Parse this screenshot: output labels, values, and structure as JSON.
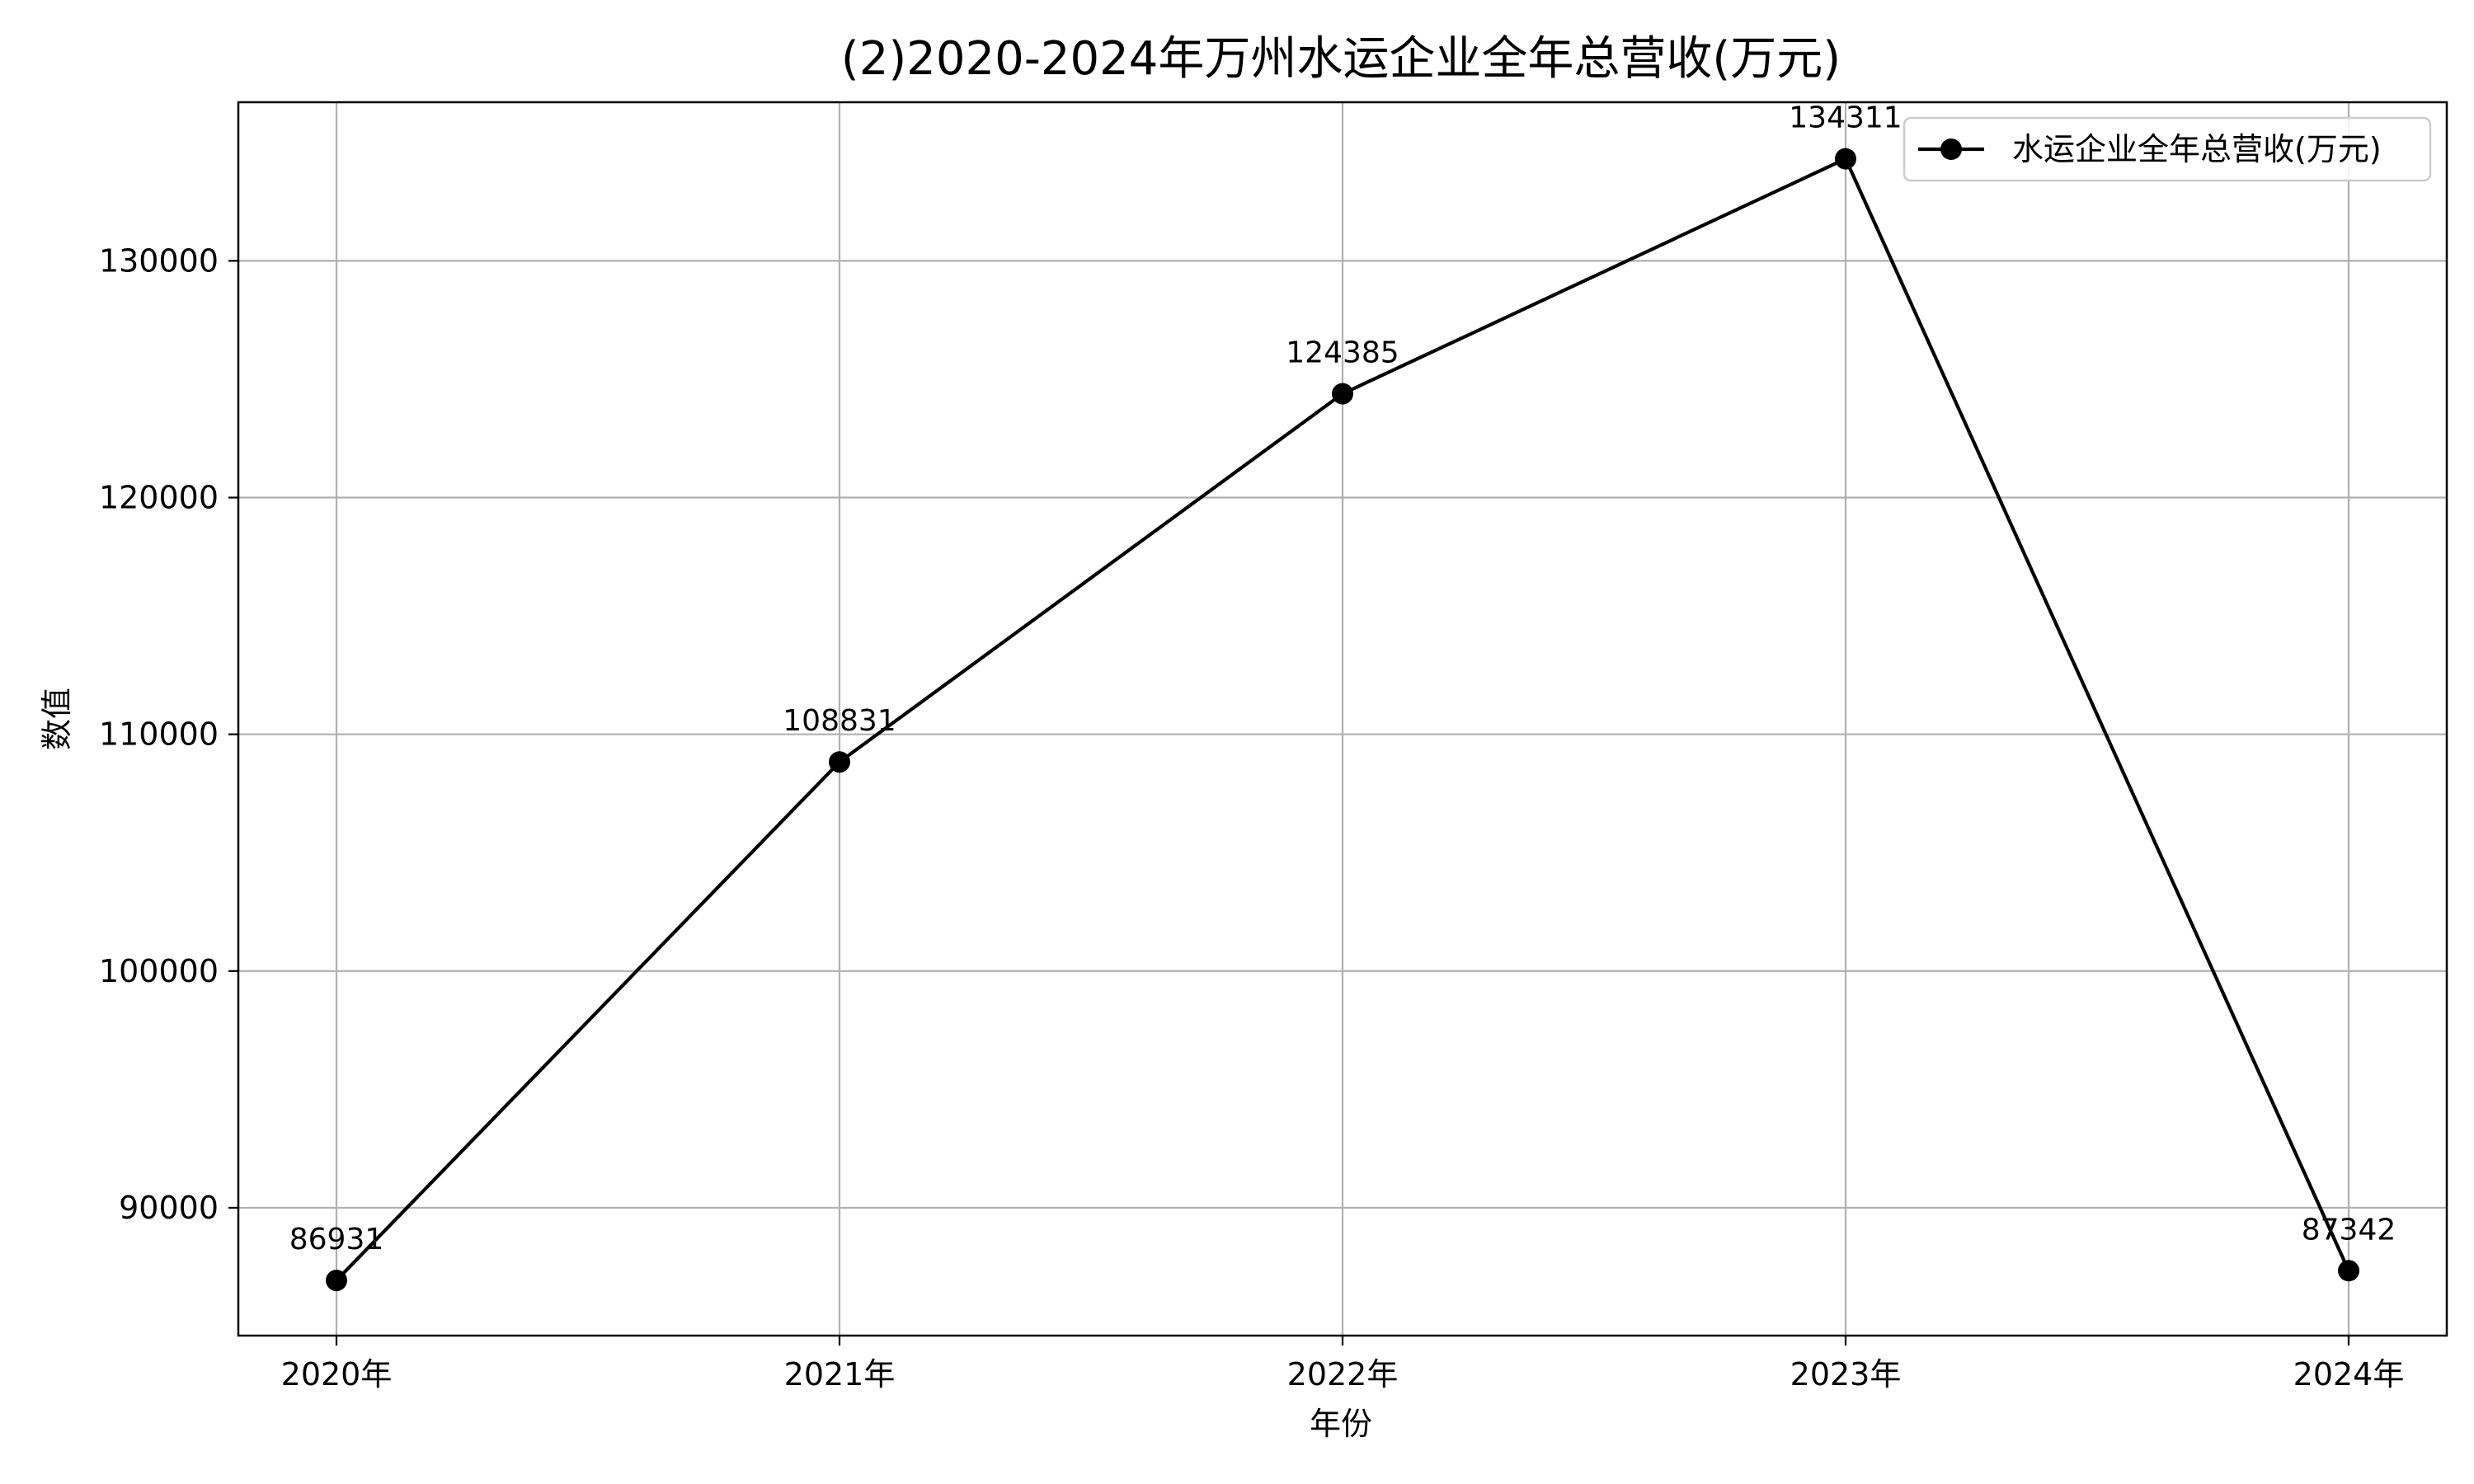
{
  "chart_data": {
    "type": "line",
    "title": "(2)2020-2024年万州水运企业全年总营收(万元)",
    "xlabel": "年份",
    "ylabel": "数值",
    "categories": [
      "2020年",
      "2021年",
      "2022年",
      "2023年",
      "2024年"
    ],
    "series": [
      {
        "name": "水运企业全年总营收(万元)",
        "values": [
          86931,
          108831,
          124385,
          134311,
          87342
        ],
        "color": "#000000",
        "marker": "circle"
      }
    ],
    "data_labels": [
      "86931",
      "108831",
      "124385",
      "134311",
      "87342"
    ],
    "ylim": [
      84600,
      136700
    ],
    "yticks": [
      90000,
      100000,
      110000,
      120000,
      130000
    ],
    "ytick_labels": [
      "90000",
      "100000",
      "110000",
      "120000",
      "130000"
    ],
    "grid": true,
    "legend_position": "top-right"
  }
}
